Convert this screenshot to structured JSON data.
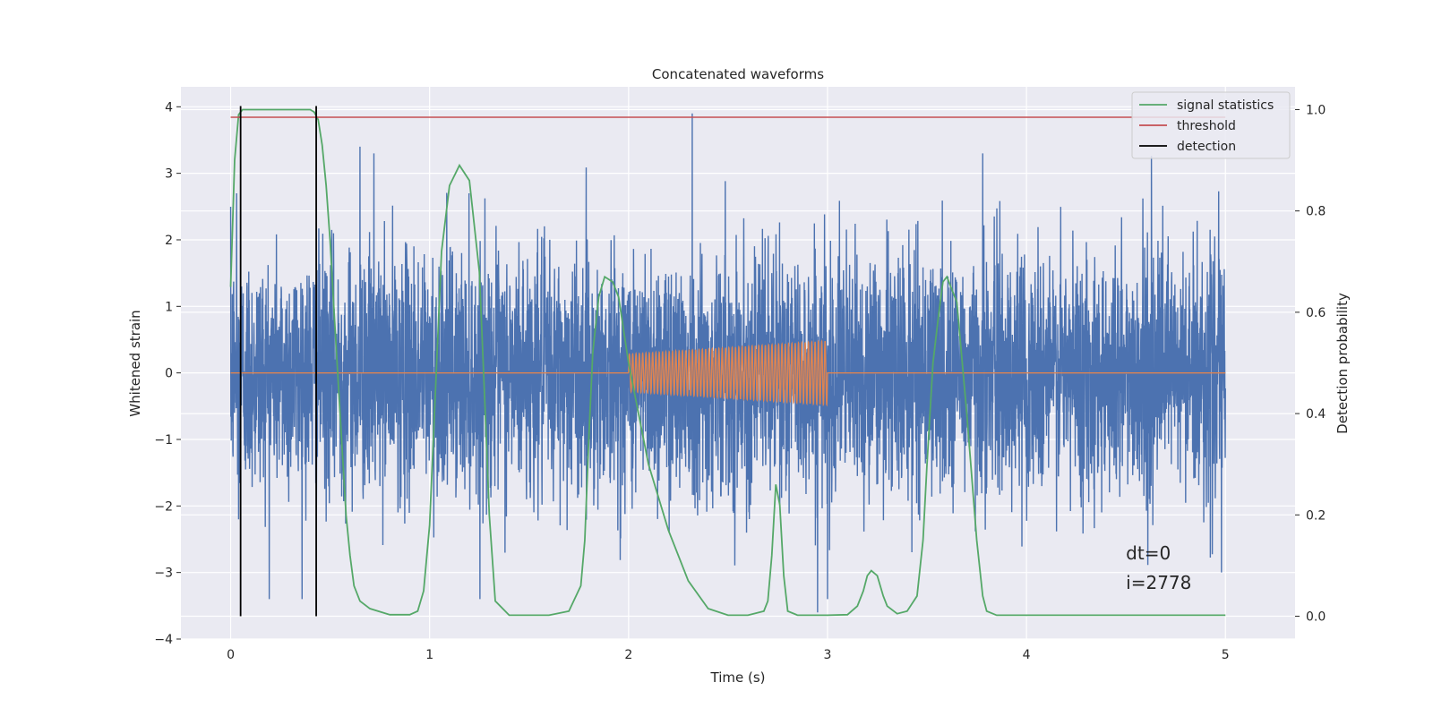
{
  "chart_data": {
    "type": "line",
    "title": "Concatenated waveforms",
    "xlabel": "Time (s)",
    "ylabel": "Whitened strain",
    "ylabel_right": "Detection probability",
    "xlim": [
      -0.25,
      5.35
    ],
    "ylim": [
      -4.0,
      4.3
    ],
    "ylim_right": [
      -0.045,
      1.045
    ],
    "x_ticks": [
      0,
      1,
      2,
      3,
      4,
      5
    ],
    "x_tick_labels": [
      "0",
      "1",
      "2",
      "3",
      "4",
      "5"
    ],
    "y_ticks": [
      -4,
      -3,
      -2,
      -1,
      0,
      1,
      2,
      3,
      4
    ],
    "y_tick_labels": [
      "−4",
      "−3",
      "−2",
      "−1",
      "0",
      "1",
      "2",
      "3",
      "4"
    ],
    "y_right_ticks": [
      0.0,
      0.2,
      0.4,
      0.6,
      0.8,
      1.0
    ],
    "y_right_tick_labels": [
      "0.0",
      "0.2",
      "0.4",
      "0.6",
      "0.8",
      "1.0"
    ],
    "grid": true,
    "legend_position": "top-right",
    "legend": [
      {
        "label": "signal statistics",
        "color": "#55a868"
      },
      {
        "label": "threshold",
        "color": "#c44e52"
      },
      {
        "label": "detection",
        "color": "#000000"
      }
    ],
    "colors": {
      "plot_background": "#eaeaf2",
      "grid": "#ffffff",
      "noise": "#4c72b0",
      "injected": "#dd8452",
      "signal_statistics": "#55a868",
      "threshold": "#c44e52",
      "detection": "#000000"
    },
    "series": [
      {
        "name": "whitened strain (noise)",
        "axis": "left",
        "x_range": [
          0,
          5
        ],
        "sample_rate": 1000,
        "approx_std": 0.9,
        "notable_spikes": [
          [
            0.03,
            2.7
          ],
          [
            0.04,
            -2.2
          ],
          [
            0.65,
            3.4
          ],
          [
            0.72,
            3.3
          ],
          [
            2.32,
            3.9
          ],
          [
            2.95,
            -3.6
          ],
          [
            3.0,
            -3.4
          ],
          [
            3.78,
            3.3
          ],
          [
            4.98,
            -3.0
          ]
        ]
      },
      {
        "name": "injected waveform",
        "axis": "left",
        "baseline_x": [
          0,
          5
        ],
        "chirp_x_range": [
          2.0,
          3.0
        ],
        "start_amplitude": 0.28,
        "end_amplitude": 0.48,
        "oscillation_frequency": 60
      },
      {
        "name": "signal statistics",
        "axis": "right",
        "x": [
          0.0,
          0.02,
          0.04,
          0.06,
          0.08,
          0.1,
          0.2,
          0.3,
          0.4,
          0.42,
          0.44,
          0.46,
          0.48,
          0.5,
          0.52,
          0.55,
          0.58,
          0.6,
          0.62,
          0.65,
          0.7,
          0.8,
          0.9,
          0.94,
          0.97,
          1.0,
          1.03,
          1.06,
          1.1,
          1.15,
          1.2,
          1.25,
          1.28,
          1.3,
          1.33,
          1.4,
          1.6,
          1.7,
          1.76,
          1.78,
          1.8,
          1.82,
          1.85,
          1.88,
          1.92,
          1.95,
          2.0,
          2.1,
          2.2,
          2.3,
          2.4,
          2.5,
          2.6,
          2.68,
          2.7,
          2.72,
          2.74,
          2.76,
          2.78,
          2.8,
          2.85,
          3.0,
          3.1,
          3.15,
          3.18,
          3.2,
          3.22,
          3.25,
          3.28,
          3.3,
          3.35,
          3.4,
          3.45,
          3.48,
          3.5,
          3.53,
          3.56,
          3.58,
          3.6,
          3.62,
          3.65,
          3.7,
          3.72,
          3.75,
          3.78,
          3.8,
          3.85,
          4.0,
          4.5,
          5.0
        ],
        "y": [
          0.65,
          0.9,
          0.99,
          1.0,
          1.0,
          1.0,
          1.0,
          1.0,
          1.0,
          0.995,
          0.98,
          0.93,
          0.85,
          0.74,
          0.6,
          0.4,
          0.2,
          0.12,
          0.06,
          0.03,
          0.015,
          0.003,
          0.003,
          0.01,
          0.05,
          0.18,
          0.45,
          0.72,
          0.85,
          0.89,
          0.86,
          0.68,
          0.4,
          0.2,
          0.03,
          0.002,
          0.002,
          0.01,
          0.06,
          0.15,
          0.35,
          0.52,
          0.63,
          0.67,
          0.66,
          0.63,
          0.5,
          0.3,
          0.17,
          0.07,
          0.015,
          0.002,
          0.002,
          0.01,
          0.03,
          0.12,
          0.26,
          0.22,
          0.08,
          0.01,
          0.002,
          0.002,
          0.003,
          0.02,
          0.05,
          0.08,
          0.09,
          0.08,
          0.04,
          0.02,
          0.005,
          0.01,
          0.04,
          0.15,
          0.3,
          0.5,
          0.6,
          0.66,
          0.67,
          0.65,
          0.62,
          0.4,
          0.3,
          0.15,
          0.04,
          0.01,
          0.002,
          0.002,
          0.002,
          0.002
        ]
      },
      {
        "name": "threshold",
        "axis": "right",
        "x": [
          0,
          5
        ],
        "y": [
          0.985,
          0.985
        ]
      },
      {
        "name": "detection",
        "axis": "right",
        "type": "vline",
        "x": [
          0.05,
          0.43
        ],
        "y_range": [
          0,
          1.0
        ]
      }
    ],
    "annotations": [
      {
        "text": "dt=0",
        "x": 4.5,
        "y": -2.8
      },
      {
        "text": "i=2778",
        "x": 4.5,
        "y": -3.25
      }
    ]
  }
}
